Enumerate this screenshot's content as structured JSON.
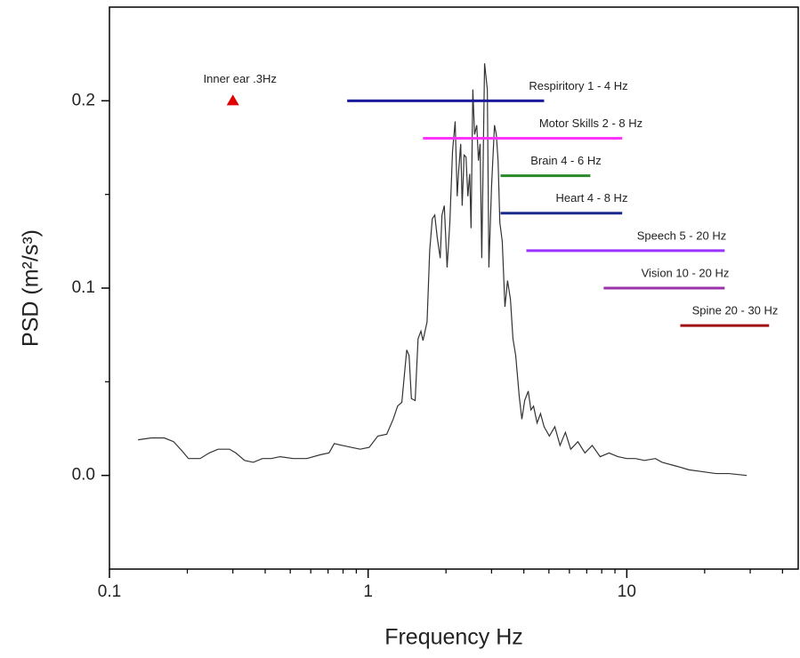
{
  "chart_data": {
    "type": "line",
    "xlabel": "Frequency Hz",
    "ylabel": "PSD (m²/s³)",
    "xscale": "log",
    "xlim": [
      0.1,
      46
    ],
    "ylim": [
      -0.05,
      0.25
    ],
    "xticks": [
      0.1,
      1,
      10
    ],
    "xminor_ticks": [
      0.2,
      0.3,
      0.4,
      0.5,
      0.6,
      0.7,
      0.8,
      0.9,
      2,
      3,
      4,
      5,
      6,
      7,
      8,
      9,
      20,
      30,
      40
    ],
    "yticks": [
      {
        "value": 0,
        "label": "0.0"
      },
      0.1,
      0.2
    ],
    "yminor_ticks": [
      0.05,
      0.15
    ],
    "series": [
      {
        "color": "#333333",
        "x": [
          0.129,
          0.145,
          0.163,
          0.177,
          0.191,
          0.202,
          0.224,
          0.243,
          0.263,
          0.291,
          0.308,
          0.333,
          0.36,
          0.39,
          0.422,
          0.457,
          0.514,
          0.579,
          0.652,
          0.706,
          0.74,
          0.795,
          0.86,
          0.931,
          1.01,
          1.09,
          1.18,
          1.25,
          1.3,
          1.35,
          1.41,
          1.44,
          1.47,
          1.52,
          1.56,
          1.6,
          1.63,
          1.69,
          1.73,
          1.77,
          1.81,
          1.85,
          1.9,
          1.93,
          1.97,
          2.02,
          2.07,
          2.12,
          2.17,
          2.21,
          2.24,
          2.28,
          2.31,
          2.35,
          2.39,
          2.43,
          2.47,
          2.5,
          2.54,
          2.58,
          2.63,
          2.67,
          2.71,
          2.75,
          2.82,
          2.89,
          2.93,
          3.0,
          3.08,
          3.13,
          3.18,
          3.23,
          3.3,
          3.38,
          3.46,
          3.55,
          3.63,
          3.72,
          3.84,
          3.93,
          4.03,
          4.16,
          4.26,
          4.36,
          4.5,
          4.64,
          4.79,
          5.02,
          5.27,
          5.52,
          5.79,
          6.07,
          6.47,
          6.89,
          7.35,
          7.89,
          8.54,
          9.24,
          10.0,
          10.8,
          11.7,
          12.9,
          13.7,
          15.5,
          17.4,
          19.6,
          22.1,
          24.8,
          29.1
        ],
        "values": [
          0.019,
          0.02,
          0.02,
          0.018,
          0.013,
          0.009,
          0.009,
          0.012,
          0.014,
          0.014,
          0.012,
          0.008,
          0.007,
          0.009,
          0.009,
          0.01,
          0.009,
          0.009,
          0.011,
          0.012,
          0.017,
          0.016,
          0.015,
          0.014,
          0.015,
          0.021,
          0.022,
          0.03,
          0.037,
          0.039,
          0.067,
          0.064,
          0.041,
          0.04,
          0.073,
          0.077,
          0.072,
          0.082,
          0.12,
          0.137,
          0.139,
          0.127,
          0.116,
          0.139,
          0.144,
          0.111,
          0.135,
          0.173,
          0.189,
          0.149,
          0.163,
          0.177,
          0.144,
          0.171,
          0.17,
          0.149,
          0.161,
          0.132,
          0.206,
          0.182,
          0.187,
          0.168,
          0.177,
          0.116,
          0.22,
          0.206,
          0.111,
          0.154,
          0.187,
          0.182,
          0.168,
          0.135,
          0.125,
          0.09,
          0.104,
          0.094,
          0.073,
          0.064,
          0.042,
          0.03,
          0.04,
          0.045,
          0.035,
          0.037,
          0.028,
          0.033,
          0.026,
          0.021,
          0.026,
          0.016,
          0.023,
          0.014,
          0.018,
          0.012,
          0.016,
          0.01,
          0.012,
          0.01,
          0.009,
          0.009,
          0.008,
          0.009,
          0.007,
          0.005,
          0.003,
          0.002,
          0.001,
          0.001,
          0.0
        ]
      }
    ],
    "bands": [
      {
        "label": "Respiritory 1 - 4 Hz",
        "x0": 0.83,
        "x1": 4.79,
        "y": 0.2,
        "color": "#1a1a9c"
      },
      {
        "label": "Motor Skills 2 - 8 Hz",
        "x0": 1.63,
        "x1": 9.6,
        "y": 0.18,
        "color": "#ff33ff"
      },
      {
        "label": "Brain 4 - 6 Hz",
        "x0": 3.25,
        "x1": 7.23,
        "y": 0.16,
        "color": "#2a8a2a"
      },
      {
        "label": "Heart 4 - 8 Hz",
        "x0": 3.25,
        "x1": 9.6,
        "y": 0.14,
        "color": "#1a2a8a"
      },
      {
        "label": "Speech 5 - 20 Hz",
        "x0": 4.09,
        "x1": 23.9,
        "y": 0.12,
        "color": "#9933ff"
      },
      {
        "label": "Vision 10 - 20 Hz",
        "x0": 8.14,
        "x1": 23.9,
        "y": 0.1,
        "color": "#9933aa"
      },
      {
        "label": "Spine 20 - 30 Hz",
        "x0": 16.1,
        "x1": 35.5,
        "y": 0.08,
        "color": "#a01010"
      }
    ],
    "markers": [
      {
        "label": "Inner ear .3Hz",
        "x": 0.3,
        "y": 0.2,
        "color": "#e00000"
      }
    ]
  }
}
